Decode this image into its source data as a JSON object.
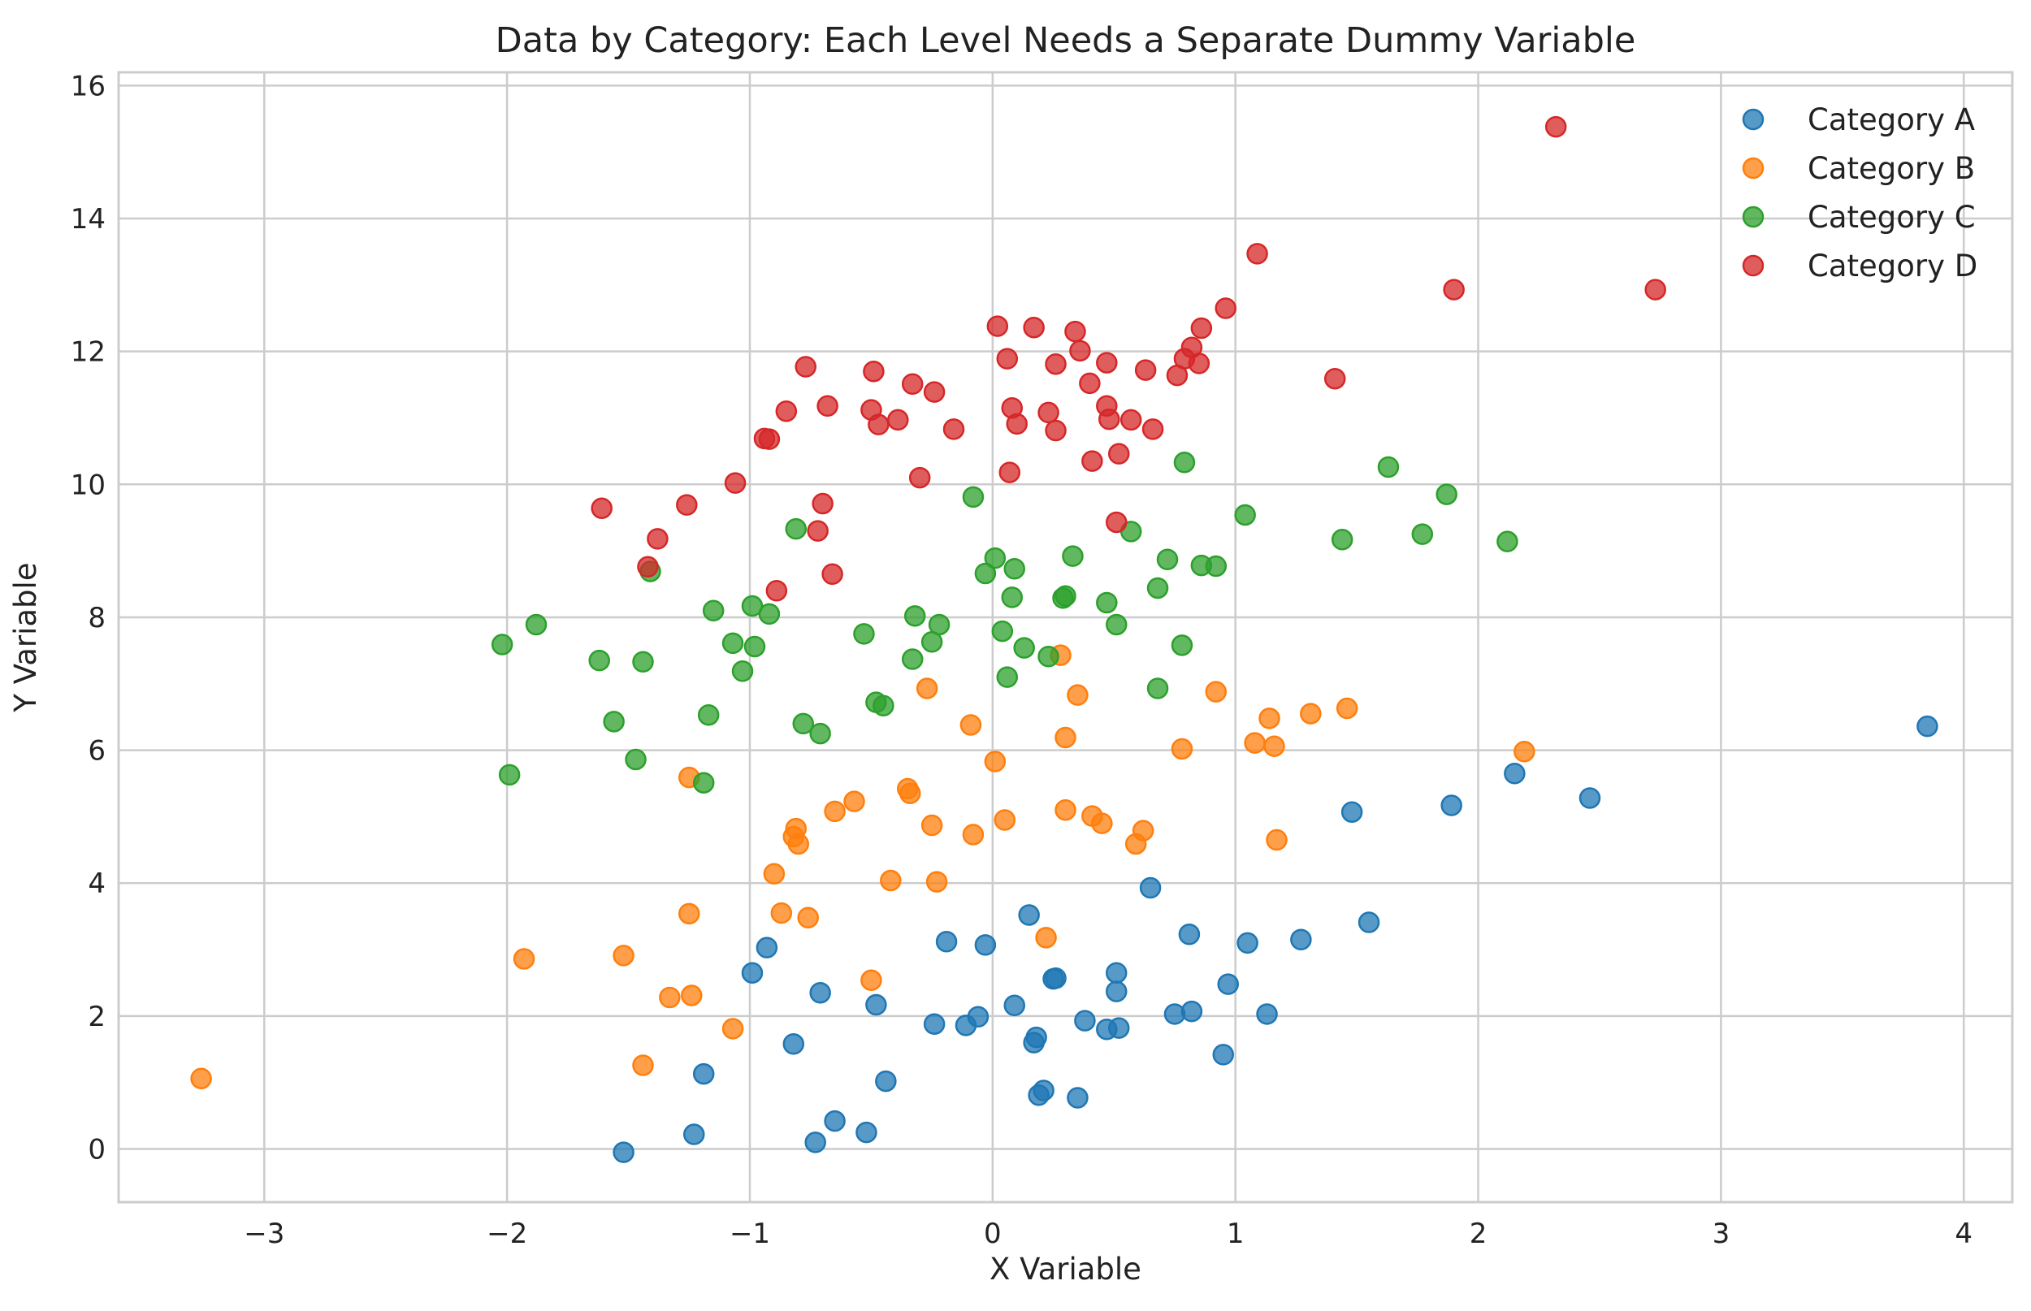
{
  "chart_data": {
    "type": "scatter",
    "title": "Data by Category: Each Level Needs a Separate Dummy Variable",
    "xlabel": "X Variable",
    "ylabel": "Y Variable",
    "xlim": [
      -3.6,
      4.2
    ],
    "ylim": [
      -0.8,
      16.2
    ],
    "xticks": [
      -3,
      -2,
      -1,
      0,
      1,
      2,
      3,
      4
    ],
    "yticks": [
      0,
      2,
      4,
      6,
      8,
      10,
      12,
      14,
      16
    ],
    "xtick_labels": [
      "−3",
      "−2",
      "−1",
      "0",
      "1",
      "2",
      "3",
      "4"
    ],
    "ytick_labels": [
      "0",
      "2",
      "4",
      "6",
      "8",
      "10",
      "12",
      "14",
      "16"
    ],
    "grid": true,
    "legend_position": "top-right",
    "series": [
      {
        "name": "Category A",
        "color": "#1f77b4",
        "points": [
          [
            -1.52,
            -0.05
          ],
          [
            -1.23,
            0.22
          ],
          [
            -1.19,
            1.13
          ],
          [
            -0.99,
            2.65
          ],
          [
            -0.93,
            3.03
          ],
          [
            -0.82,
            1.58
          ],
          [
            -0.73,
            0.1
          ],
          [
            -0.71,
            2.35
          ],
          [
            -0.65,
            0.42
          ],
          [
            -0.52,
            0.25
          ],
          [
            -0.48,
            2.17
          ],
          [
            -0.44,
            1.02
          ],
          [
            -0.24,
            1.88
          ],
          [
            -0.19,
            3.12
          ],
          [
            -0.11,
            1.86
          ],
          [
            -0.06,
            1.99
          ],
          [
            -0.03,
            3.07
          ],
          [
            0.09,
            2.16
          ],
          [
            0.15,
            3.52
          ],
          [
            0.17,
            1.6
          ],
          [
            0.18,
            1.68
          ],
          [
            0.19,
            0.81
          ],
          [
            0.21,
            0.88
          ],
          [
            0.25,
            2.56
          ],
          [
            0.26,
            2.57
          ],
          [
            0.35,
            0.77
          ],
          [
            0.38,
            1.93
          ],
          [
            0.47,
            1.8
          ],
          [
            0.51,
            2.37
          ],
          [
            0.51,
            2.65
          ],
          [
            0.52,
            1.82
          ],
          [
            0.65,
            3.93
          ],
          [
            0.75,
            2.03
          ],
          [
            0.81,
            3.23
          ],
          [
            0.82,
            2.07
          ],
          [
            0.95,
            1.42
          ],
          [
            0.97,
            2.48
          ],
          [
            1.05,
            3.1
          ],
          [
            1.13,
            2.03
          ],
          [
            1.27,
            3.15
          ],
          [
            1.48,
            5.07
          ],
          [
            1.55,
            3.41
          ],
          [
            1.89,
            5.17
          ],
          [
            2.15,
            5.65
          ],
          [
            2.46,
            5.28
          ],
          [
            3.85,
            6.36
          ]
        ]
      },
      {
        "name": "Category B",
        "color": "#ff7f0e",
        "points": [
          [
            -3.26,
            1.06
          ],
          [
            -1.93,
            2.86
          ],
          [
            -1.52,
            2.91
          ],
          [
            -1.44,
            1.26
          ],
          [
            -1.33,
            2.28
          ],
          [
            -1.25,
            5.59
          ],
          [
            -1.25,
            3.54
          ],
          [
            -1.24,
            2.31
          ],
          [
            -1.07,
            1.81
          ],
          [
            -0.9,
            4.14
          ],
          [
            -0.87,
            3.55
          ],
          [
            -0.82,
            4.7
          ],
          [
            -0.81,
            4.82
          ],
          [
            -0.8,
            4.59
          ],
          [
            -0.76,
            3.48
          ],
          [
            -0.65,
            5.08
          ],
          [
            -0.57,
            5.23
          ],
          [
            -0.5,
            2.54
          ],
          [
            -0.42,
            4.04
          ],
          [
            -0.35,
            5.42
          ],
          [
            -0.34,
            5.35
          ],
          [
            -0.27,
            6.93
          ],
          [
            -0.25,
            4.87
          ],
          [
            -0.23,
            4.02
          ],
          [
            -0.09,
            6.38
          ],
          [
            -0.08,
            4.73
          ],
          [
            0.01,
            5.83
          ],
          [
            0.05,
            4.95
          ],
          [
            0.22,
            3.18
          ],
          [
            0.28,
            7.43
          ],
          [
            0.3,
            6.19
          ],
          [
            0.3,
            5.1
          ],
          [
            0.35,
            6.83
          ],
          [
            0.41,
            5.01
          ],
          [
            0.45,
            4.9
          ],
          [
            0.59,
            4.59
          ],
          [
            0.62,
            4.79
          ],
          [
            0.78,
            6.02
          ],
          [
            0.92,
            6.88
          ],
          [
            1.08,
            6.11
          ],
          [
            1.14,
            6.48
          ],
          [
            1.16,
            6.06
          ],
          [
            1.17,
            4.65
          ],
          [
            1.31,
            6.55
          ],
          [
            1.46,
            6.63
          ],
          [
            2.19,
            5.98
          ]
        ]
      },
      {
        "name": "Category C",
        "color": "#2ca02c",
        "points": [
          [
            -2.02,
            7.59
          ],
          [
            -1.99,
            5.63
          ],
          [
            -1.88,
            7.89
          ],
          [
            -1.62,
            7.35
          ],
          [
            -1.56,
            6.43
          ],
          [
            -1.47,
            5.86
          ],
          [
            -1.44,
            7.33
          ],
          [
            -1.41,
            8.69
          ],
          [
            -1.19,
            5.51
          ],
          [
            -1.17,
            6.53
          ],
          [
            -1.15,
            8.1
          ],
          [
            -1.07,
            7.61
          ],
          [
            -1.03,
            7.19
          ],
          [
            -0.99,
            8.17
          ],
          [
            -0.98,
            7.56
          ],
          [
            -0.92,
            8.05
          ],
          [
            -0.81,
            9.33
          ],
          [
            -0.78,
            6.4
          ],
          [
            -0.71,
            6.25
          ],
          [
            -0.53,
            7.75
          ],
          [
            -0.48,
            6.72
          ],
          [
            -0.45,
            6.67
          ],
          [
            -0.33,
            7.37
          ],
          [
            -0.32,
            8.02
          ],
          [
            -0.25,
            7.63
          ],
          [
            -0.22,
            7.89
          ],
          [
            -0.08,
            9.81
          ],
          [
            -0.03,
            8.66
          ],
          [
            0.01,
            8.89
          ],
          [
            0.04,
            7.79
          ],
          [
            0.06,
            7.1
          ],
          [
            0.08,
            8.3
          ],
          [
            0.09,
            8.73
          ],
          [
            0.13,
            7.54
          ],
          [
            0.23,
            7.41
          ],
          [
            0.29,
            8.29
          ],
          [
            0.3,
            8.32
          ],
          [
            0.33,
            8.92
          ],
          [
            0.47,
            8.22
          ],
          [
            0.51,
            7.89
          ],
          [
            0.57,
            9.29
          ],
          [
            0.68,
            6.93
          ],
          [
            0.68,
            8.44
          ],
          [
            0.72,
            8.87
          ],
          [
            0.78,
            7.58
          ],
          [
            0.79,
            10.33
          ],
          [
            0.86,
            8.78
          ],
          [
            0.92,
            8.77
          ],
          [
            1.04,
            9.54
          ],
          [
            1.44,
            9.17
          ],
          [
            1.63,
            10.26
          ],
          [
            1.77,
            9.25
          ],
          [
            1.87,
            9.85
          ],
          [
            2.12,
            9.14
          ]
        ]
      },
      {
        "name": "Category D",
        "color": "#d62728",
        "points": [
          [
            -1.61,
            9.64
          ],
          [
            -1.42,
            8.76
          ],
          [
            -1.38,
            9.18
          ],
          [
            -1.26,
            9.69
          ],
          [
            -1.06,
            10.02
          ],
          [
            -0.94,
            10.69
          ],
          [
            -0.92,
            10.68
          ],
          [
            -0.89,
            8.4
          ],
          [
            -0.85,
            11.1
          ],
          [
            -0.77,
            11.77
          ],
          [
            -0.72,
            9.3
          ],
          [
            -0.7,
            9.71
          ],
          [
            -0.68,
            11.18
          ],
          [
            -0.66,
            8.65
          ],
          [
            -0.5,
            11.12
          ],
          [
            -0.49,
            11.7
          ],
          [
            -0.47,
            10.9
          ],
          [
            -0.39,
            10.97
          ],
          [
            -0.33,
            11.51
          ],
          [
            -0.3,
            10.1
          ],
          [
            -0.24,
            11.39
          ],
          [
            -0.16,
            10.83
          ],
          [
            0.02,
            12.38
          ],
          [
            0.06,
            11.89
          ],
          [
            0.07,
            10.18
          ],
          [
            0.08,
            11.15
          ],
          [
            0.1,
            10.91
          ],
          [
            0.17,
            12.36
          ],
          [
            0.23,
            11.08
          ],
          [
            0.26,
            10.81
          ],
          [
            0.26,
            11.81
          ],
          [
            0.34,
            12.3
          ],
          [
            0.36,
            12.01
          ],
          [
            0.4,
            11.52
          ],
          [
            0.41,
            10.35
          ],
          [
            0.47,
            11.83
          ],
          [
            0.47,
            11.18
          ],
          [
            0.48,
            10.98
          ],
          [
            0.51,
            9.43
          ],
          [
            0.52,
            10.46
          ],
          [
            0.57,
            10.97
          ],
          [
            0.63,
            11.72
          ],
          [
            0.66,
            10.83
          ],
          [
            0.76,
            11.64
          ],
          [
            0.79,
            11.89
          ],
          [
            0.82,
            12.06
          ],
          [
            0.85,
            11.82
          ],
          [
            0.86,
            12.35
          ],
          [
            0.96,
            12.65
          ],
          [
            1.09,
            13.47
          ],
          [
            1.41,
            11.59
          ],
          [
            1.9,
            12.93
          ],
          [
            2.32,
            15.38
          ],
          [
            2.73,
            12.93
          ]
        ]
      }
    ]
  }
}
